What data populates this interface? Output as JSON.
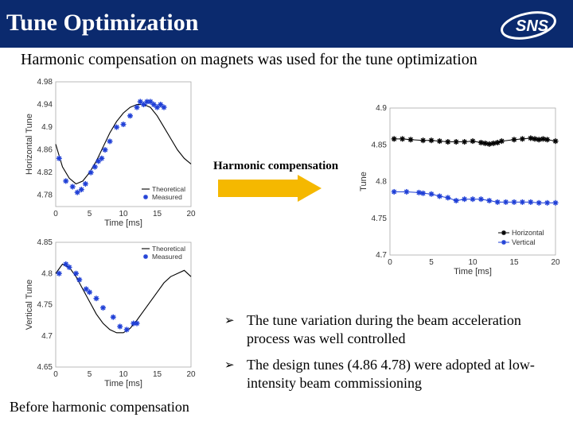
{
  "header": {
    "title": "Tune Optimization",
    "logo_text": "SNS"
  },
  "subtitle": "Harmonic compensation on magnets was used for the tune optimization",
  "arrow_label": "Harmonic compensation",
  "bullets": [
    "The tune variation during the beam acceleration process was well controlled",
    "The design tunes (4.86 4.78) were adopted at low-intensity beam commissioning"
  ],
  "caption": "Before harmonic compensation",
  "colors": {
    "header_bg": "#0b2a6e",
    "measured": "#1f3fd6",
    "arrow": "#f5b800"
  },
  "chart_data": [
    {
      "type": "scatter",
      "xlabel": "Time [ms]",
      "ylabel": "Horizontal Tune",
      "xlim": [
        0,
        20
      ],
      "ylim": [
        4.76,
        4.98
      ],
      "xticks": [
        "0",
        "5",
        "10",
        "15",
        "20"
      ],
      "yticks": [
        "4.78",
        "4.82",
        "4.86",
        "4.9",
        "4.94",
        "4.98"
      ],
      "legend": [
        "Theoretical",
        "Measured"
      ],
      "legend_position": "bottom-right",
      "theoretical": {
        "x": [
          0,
          1,
          2,
          3,
          4,
          5,
          6,
          7,
          8,
          9,
          10,
          11,
          12,
          13,
          14,
          15,
          16,
          17,
          18,
          19,
          20
        ],
        "y": [
          4.87,
          4.83,
          4.81,
          4.8,
          4.805,
          4.82,
          4.84,
          4.865,
          4.89,
          4.91,
          4.925,
          4.935,
          4.94,
          4.94,
          4.935,
          4.92,
          4.9,
          4.88,
          4.86,
          4.845,
          4.835
        ]
      },
      "measured": {
        "x": [
          0.5,
          1.5,
          2.5,
          3.2,
          3.8,
          4.4,
          5.2,
          5.8,
          6.3,
          6.8,
          7.3,
          8,
          9,
          10,
          11,
          12,
          12.5,
          13,
          13.5,
          14,
          14.5,
          15,
          15.5,
          16
        ],
        "y": [
          4.845,
          4.805,
          4.795,
          4.785,
          4.79,
          4.8,
          4.82,
          4.83,
          4.84,
          4.845,
          4.86,
          4.875,
          4.9,
          4.905,
          4.92,
          4.935,
          4.945,
          4.94,
          4.945,
          4.945,
          4.94,
          4.935,
          4.94,
          4.935
        ]
      }
    },
    {
      "type": "scatter",
      "xlabel": "Time [ms]",
      "ylabel": "Vertical Tune",
      "xlim": [
        0,
        20
      ],
      "ylim": [
        4.65,
        4.85
      ],
      "xticks": [
        "0",
        "5",
        "10",
        "15",
        "20"
      ],
      "yticks": [
        "4.65",
        "4.7",
        "4.75",
        "4.8",
        "4.85"
      ],
      "legend": [
        "Theoretical",
        "Measured"
      ],
      "legend_position": "top-right",
      "theoretical": {
        "x": [
          0,
          1,
          2,
          3,
          4,
          5,
          6,
          7,
          8,
          9,
          10,
          11,
          12,
          13,
          14,
          15,
          16,
          17,
          18,
          19,
          20
        ],
        "y": [
          4.8,
          4.815,
          4.81,
          4.795,
          4.775,
          4.755,
          4.735,
          4.72,
          4.71,
          4.705,
          4.705,
          4.712,
          4.725,
          4.74,
          4.755,
          4.77,
          4.785,
          4.795,
          4.8,
          4.805,
          4.795
        ]
      },
      "measured": {
        "x": [
          0.5,
          1.5,
          2,
          3,
          3.5,
          4.5,
          5,
          6,
          7,
          8.5,
          9.5,
          10.5,
          11.5,
          12
        ],
        "y": [
          4.8,
          4.815,
          4.81,
          4.8,
          4.79,
          4.775,
          4.77,
          4.76,
          4.745,
          4.73,
          4.715,
          4.71,
          4.72,
          4.72
        ]
      }
    },
    {
      "type": "line",
      "xlabel": "Time [ms]",
      "ylabel": "Tune",
      "xlim": [
        0,
        20
      ],
      "ylim": [
        4.7,
        4.9
      ],
      "xticks": [
        "0",
        "5",
        "10",
        "15",
        "20"
      ],
      "yticks": [
        "4.7",
        "4.75",
        "4.8",
        "4.85",
        "4.9"
      ],
      "legend_position": "bottom-right",
      "series": [
        {
          "name": "Horizontal",
          "color": "#000000",
          "x": [
            0.5,
            1.5,
            2.5,
            4,
            5,
            6,
            7,
            8,
            9,
            10,
            11,
            11.5,
            12,
            12.5,
            13,
            13.5,
            15,
            16,
            17,
            17.5,
            18,
            18.5,
            19,
            20
          ],
          "y": [
            4.858,
            4.858,
            4.857,
            4.856,
            4.856,
            4.855,
            4.854,
            4.854,
            4.854,
            4.855,
            4.853,
            4.852,
            4.851,
            4.852,
            4.853,
            4.855,
            4.857,
            4.858,
            4.859,
            4.858,
            4.857,
            4.858,
            4.857,
            4.855
          ]
        },
        {
          "name": "Vertical",
          "color": "#1f3fd6",
          "x": [
            0.5,
            2,
            3.5,
            4,
            5,
            6,
            7,
            8,
            9,
            10,
            11,
            12,
            13,
            14,
            15,
            16,
            17,
            18,
            19,
            20
          ],
          "y": [
            4.786,
            4.786,
            4.785,
            4.784,
            4.783,
            4.78,
            4.778,
            4.774,
            4.776,
            4.776,
            4.776,
            4.774,
            4.772,
            4.772,
            4.772,
            4.772,
            4.772,
            4.771,
            4.771,
            4.771
          ]
        }
      ]
    }
  ]
}
